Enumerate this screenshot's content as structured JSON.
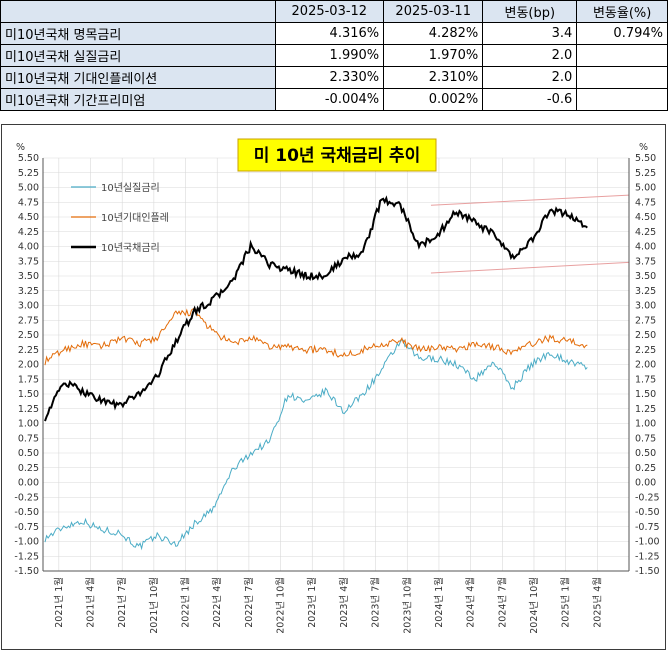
{
  "table": {
    "headers": [
      "",
      "2025-03-12",
      "2025-03-11",
      "변동(bp)",
      "변동율(%)"
    ],
    "rows": [
      {
        "label": "미10년국채 명목금리",
        "d1": "4.316%",
        "d2": "4.282%",
        "bp": "3.4",
        "pct": "0.794%"
      },
      {
        "label": "미10년국채 실질금리",
        "d1": "1.990%",
        "d2": "1.970%",
        "bp": "2.0",
        "pct": ""
      },
      {
        "label": "미10년국채 기대인플레이션",
        "d1": "2.330%",
        "d2": "2.310%",
        "bp": "2.0",
        "pct": ""
      },
      {
        "label": "미10년국채 기간프리미엄",
        "d1": "-0.004%",
        "d2": "0.002%",
        "bp": "-0.6",
        "pct": ""
      }
    ]
  },
  "chart_data": {
    "type": "line",
    "title": "미 10년  국채금리  추이",
    "ylabel_left": "%",
    "ylabel_right": "%",
    "ylim": [
      -1.5,
      5.5
    ],
    "ytick_step": 0.25,
    "grid": true,
    "legend_position": "top-left",
    "x_ticks": [
      "2021년 1월",
      "2021년 4월",
      "2021년 7월",
      "2021년 10월",
      "2022년 1월",
      "2022년 4월",
      "2022년 7월",
      "2022년 10월",
      "2023년 1월",
      "2023년 4월",
      "2023년 7월",
      "2023년 10월",
      "2024년 1월",
      "2024년 4월",
      "2024년 7월",
      "2024년 10월",
      "2025년 1월",
      "2025년 4월"
    ],
    "series": [
      {
        "name": "10년실질금리",
        "color": "#4bacc6",
        "values": [
          -0.95,
          -0.75,
          -0.65,
          -0.8,
          -0.85,
          -1.1,
          -0.9,
          -1.05,
          -0.7,
          -0.45,
          0.2,
          0.5,
          0.7,
          1.5,
          1.35,
          1.55,
          1.2,
          1.5,
          1.9,
          2.4,
          2.1,
          2.1,
          2.0,
          1.75,
          2.05,
          1.6,
          2.0,
          2.2,
          2.05,
          1.95
        ]
      },
      {
        "name": "10년기대인플레",
        "color": "#e36c09",
        "values": [
          2.05,
          2.25,
          2.35,
          2.3,
          2.45,
          2.35,
          2.45,
          2.85,
          2.9,
          2.55,
          2.35,
          2.45,
          2.3,
          2.3,
          2.25,
          2.25,
          2.15,
          2.25,
          2.35,
          2.4,
          2.25,
          2.3,
          2.25,
          2.35,
          2.3,
          2.2,
          2.35,
          2.45,
          2.4,
          2.33
        ]
      },
      {
        "name": "10년국채금리",
        "color": "#000000",
        "values": [
          1.1,
          1.7,
          1.55,
          1.4,
          1.3,
          1.5,
          1.8,
          2.4,
          2.9,
          3.1,
          3.4,
          4.0,
          3.7,
          3.6,
          3.5,
          3.5,
          3.8,
          3.9,
          4.8,
          4.7,
          4.0,
          4.2,
          4.6,
          4.4,
          4.2,
          3.8,
          4.1,
          4.6,
          4.55,
          4.32
        ]
      }
    ],
    "trend_lines": {
      "color": "#e8a0a0",
      "upper": [
        4.7,
        4.87
      ],
      "lower": [
        3.55,
        3.73
      ]
    }
  }
}
